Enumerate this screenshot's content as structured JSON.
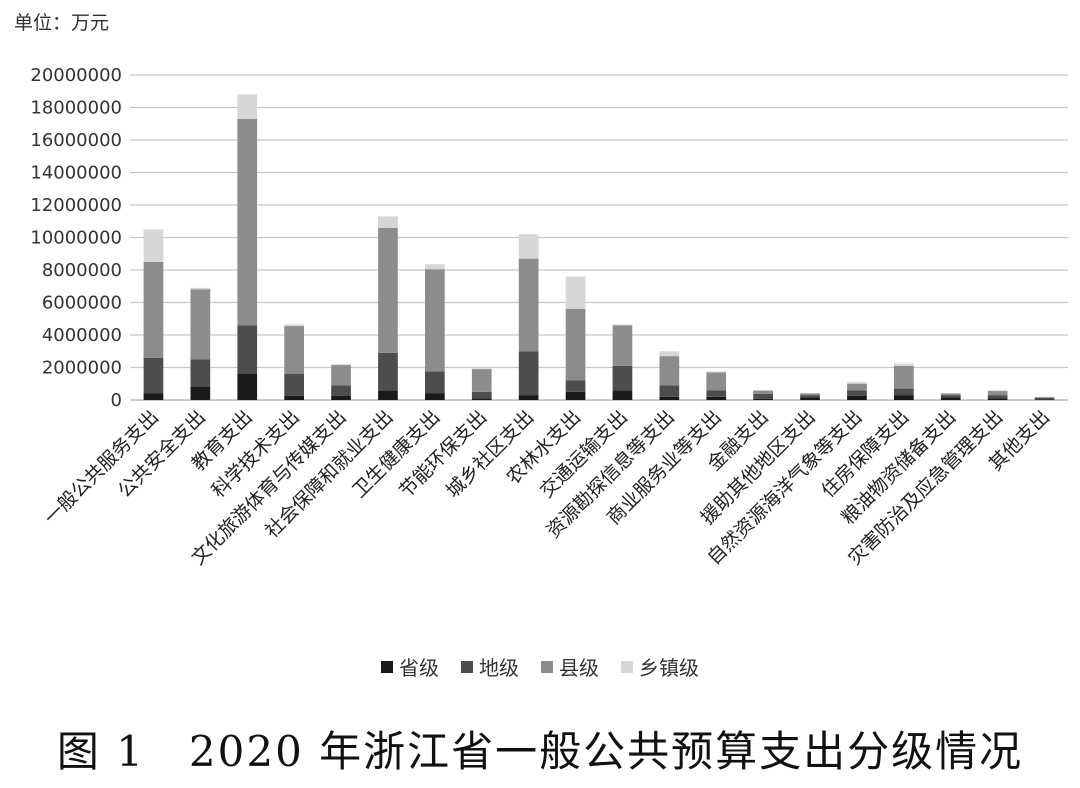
{
  "unit_label": "单位：万元",
  "caption": "图 1　2020 年浙江省一般公共预算支出分级情况",
  "chart_data": {
    "type": "bar",
    "stacked": true,
    "ylim": [
      0,
      20000000
    ],
    "y_ticks": [
      "0",
      "2000000",
      "4000000",
      "6000000",
      "8000000",
      "10000000",
      "12000000",
      "14000000",
      "16000000",
      "18000000",
      "20000000"
    ],
    "grid": true,
    "legend_position": "bottom",
    "categories": [
      "一般公共服务支出",
      "公共安全支出",
      "教育支出",
      "科学技术支出",
      "文化旅游体育与传媒支出",
      "社会保障和就业支出",
      "卫生健康支出",
      "节能环保支出",
      "城乡社区支出",
      "农林水支出",
      "交通运输支出",
      "资源勘探信息等支出",
      "商业服务业等支出",
      "金融支出",
      "援助其他地区支出",
      "自然资源海洋气象等支出",
      "住房保障支出",
      "粮油物资储备支出",
      "灾害防治及应急管理支出",
      "其他支出"
    ],
    "series": [
      {
        "name": "省级",
        "color": "#1a1a1a",
        "values": [
          400000,
          800000,
          1600000,
          250000,
          250000,
          600000,
          400000,
          100000,
          300000,
          500000,
          600000,
          200000,
          200000,
          80000,
          150000,
          250000,
          300000,
          150000,
          100000,
          50000
        ]
      },
      {
        "name": "地级",
        "color": "#4d4d4d",
        "values": [
          2200000,
          1700000,
          3000000,
          1350000,
          650000,
          2300000,
          1350000,
          400000,
          2700000,
          700000,
          1500000,
          700000,
          400000,
          300000,
          150000,
          350000,
          400000,
          150000,
          200000,
          80000
        ]
      },
      {
        "name": "县级",
        "color": "#8c8c8c",
        "values": [
          5900000,
          4300000,
          12700000,
          2950000,
          1250000,
          7700000,
          6300000,
          1400000,
          5700000,
          4400000,
          2500000,
          1800000,
          1100000,
          200000,
          100000,
          400000,
          1400000,
          100000,
          250000,
          50000
        ]
      },
      {
        "name": "乡镇级",
        "color": "#d6d6d6",
        "values": [
          2000000,
          100000,
          1500000,
          100000,
          50000,
          700000,
          300000,
          50000,
          1500000,
          2000000,
          50000,
          300000,
          50000,
          20000,
          20000,
          100000,
          150000,
          20000,
          50000,
          20000
        ]
      }
    ]
  }
}
